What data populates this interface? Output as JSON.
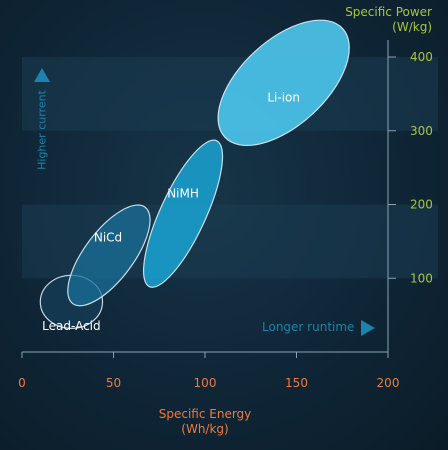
{
  "colors": {
    "background": "#10283a",
    "band": "#1b3d52",
    "axis": "#8aa3b3",
    "x_text": "#f07a3a",
    "y_text": "#a8c63a",
    "annotation": "#1d82ad",
    "lead_acid": "#164866",
    "nicd": "#1a6f98",
    "nimh": "#1aa3d4",
    "li_ion": "#4cc3ea"
  },
  "annotations": {
    "higher_current": "Higher current",
    "longer_runtime": "Longer runtime",
    "higher_current_arrow_icon": "arrow-up-icon",
    "longer_runtime_arrow_icon": "arrow-right-icon"
  },
  "chart_data": {
    "type": "scatter",
    "xlabel": "Specific Energy\n(Wh/kg)",
    "ylabel": "Specific Power\n(W/kg)",
    "xlim": [
      0,
      200
    ],
    "ylim": [
      0,
      400
    ],
    "x_ticks": [
      "0",
      "50",
      "100",
      "150",
      "200"
    ],
    "y_ticks": [
      "100",
      "200",
      "300",
      "400"
    ],
    "y_axis_side": "right",
    "bands": [
      {
        "from": 100,
        "to": 200
      },
      {
        "from": 300,
        "to": 400
      }
    ],
    "series": [
      {
        "name": "Lead-Acid",
        "region": {
          "x_min": 10,
          "x_max": 44,
          "y_min": 32,
          "y_max": 104
        },
        "label_x": 27,
        "label_y": 35,
        "color": "#164866"
      },
      {
        "name": "NiCd",
        "region": {
          "x_min": 26,
          "x_max": 69,
          "y_min": 60,
          "y_max": 202
        },
        "label_x": 47,
        "label_y": 155,
        "color": "#1a6f98"
      },
      {
        "name": "NiMH",
        "region": {
          "x_min": 68,
          "x_max": 108,
          "y_min": 80,
          "y_max": 295
        },
        "label_x": 88,
        "label_y": 215,
        "color": "#1aa3d4"
      },
      {
        "name": "Li-ion",
        "region": {
          "x_min": 108,
          "x_max": 178,
          "y_min": 285,
          "y_max": 445
        },
        "label_x": 143,
        "label_y": 345,
        "color": "#4cc3ea"
      }
    ]
  }
}
